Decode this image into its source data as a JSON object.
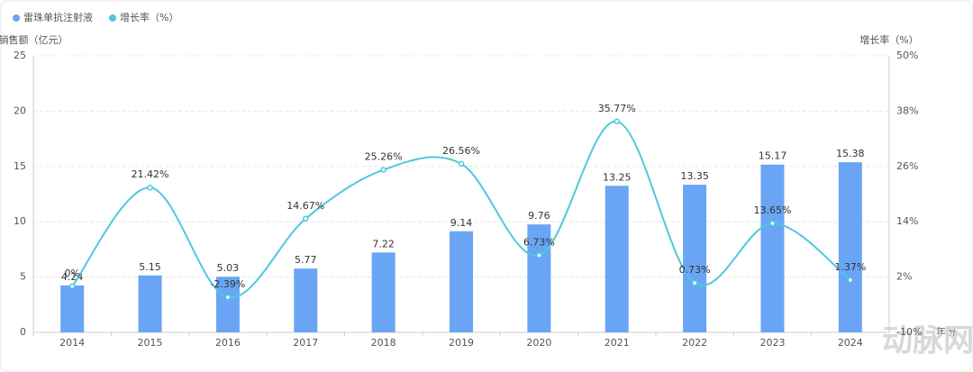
{
  "chart_data": {
    "type": "bar",
    "legend": "top-left",
    "grid": true,
    "categories": [
      "2014",
      "2015",
      "2016",
      "2017",
      "2018",
      "2019",
      "2020",
      "2021",
      "2022",
      "2023",
      "2024"
    ],
    "x_label": "年份",
    "y_label": "销售额（亿元）",
    "y2_label": "增长率（%）",
    "ylim": [
      0,
      25
    ],
    "yticks": [
      0,
      5,
      10,
      15,
      20,
      25
    ],
    "y2lim": [
      -10,
      50
    ],
    "y2ticks": [
      {
        "value": -10,
        "label": "-10%"
      },
      {
        "value": 2,
        "label": "2%"
      },
      {
        "value": 14,
        "label": "14%"
      },
      {
        "value": 26,
        "label": "26%"
      },
      {
        "value": 38,
        "label": "38%"
      },
      {
        "value": 50,
        "label": "50%"
      }
    ],
    "series": [
      {
        "name": "雷珠单抗注射液",
        "color": "#6aa5f5",
        "values": [
          4.24,
          5.15,
          5.03,
          5.77,
          7.22,
          9.14,
          9.76,
          13.25,
          13.35,
          15.17,
          15.38
        ]
      },
      {
        "name": "增长率（%）",
        "type": "line",
        "axis": "y2",
        "color": "#4fc9dd",
        "values": [
          0,
          21.42,
          -2.39,
          14.67,
          25.26,
          26.56,
          6.73,
          35.77,
          0.73,
          13.65,
          1.37
        ],
        "value_labels": [
          "0%",
          "21.42%",
          "-2.39%",
          "14.67%",
          "25.26%",
          "26.56%",
          "6.73%",
          "35.77%",
          "0.73%",
          "13.65%",
          "1.37%"
        ]
      }
    ]
  },
  "watermark": "动脉网"
}
